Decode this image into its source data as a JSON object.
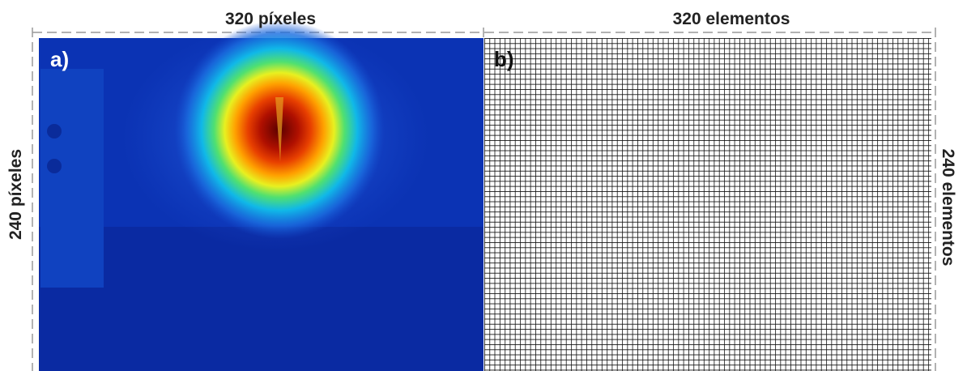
{
  "panels": [
    {
      "label": "a)",
      "top_label": "320 píxeles",
      "side_label": "240 píxeles"
    },
    {
      "label": "b)",
      "top_label": "320 elementos",
      "side_label": "240 elementos"
    }
  ]
}
